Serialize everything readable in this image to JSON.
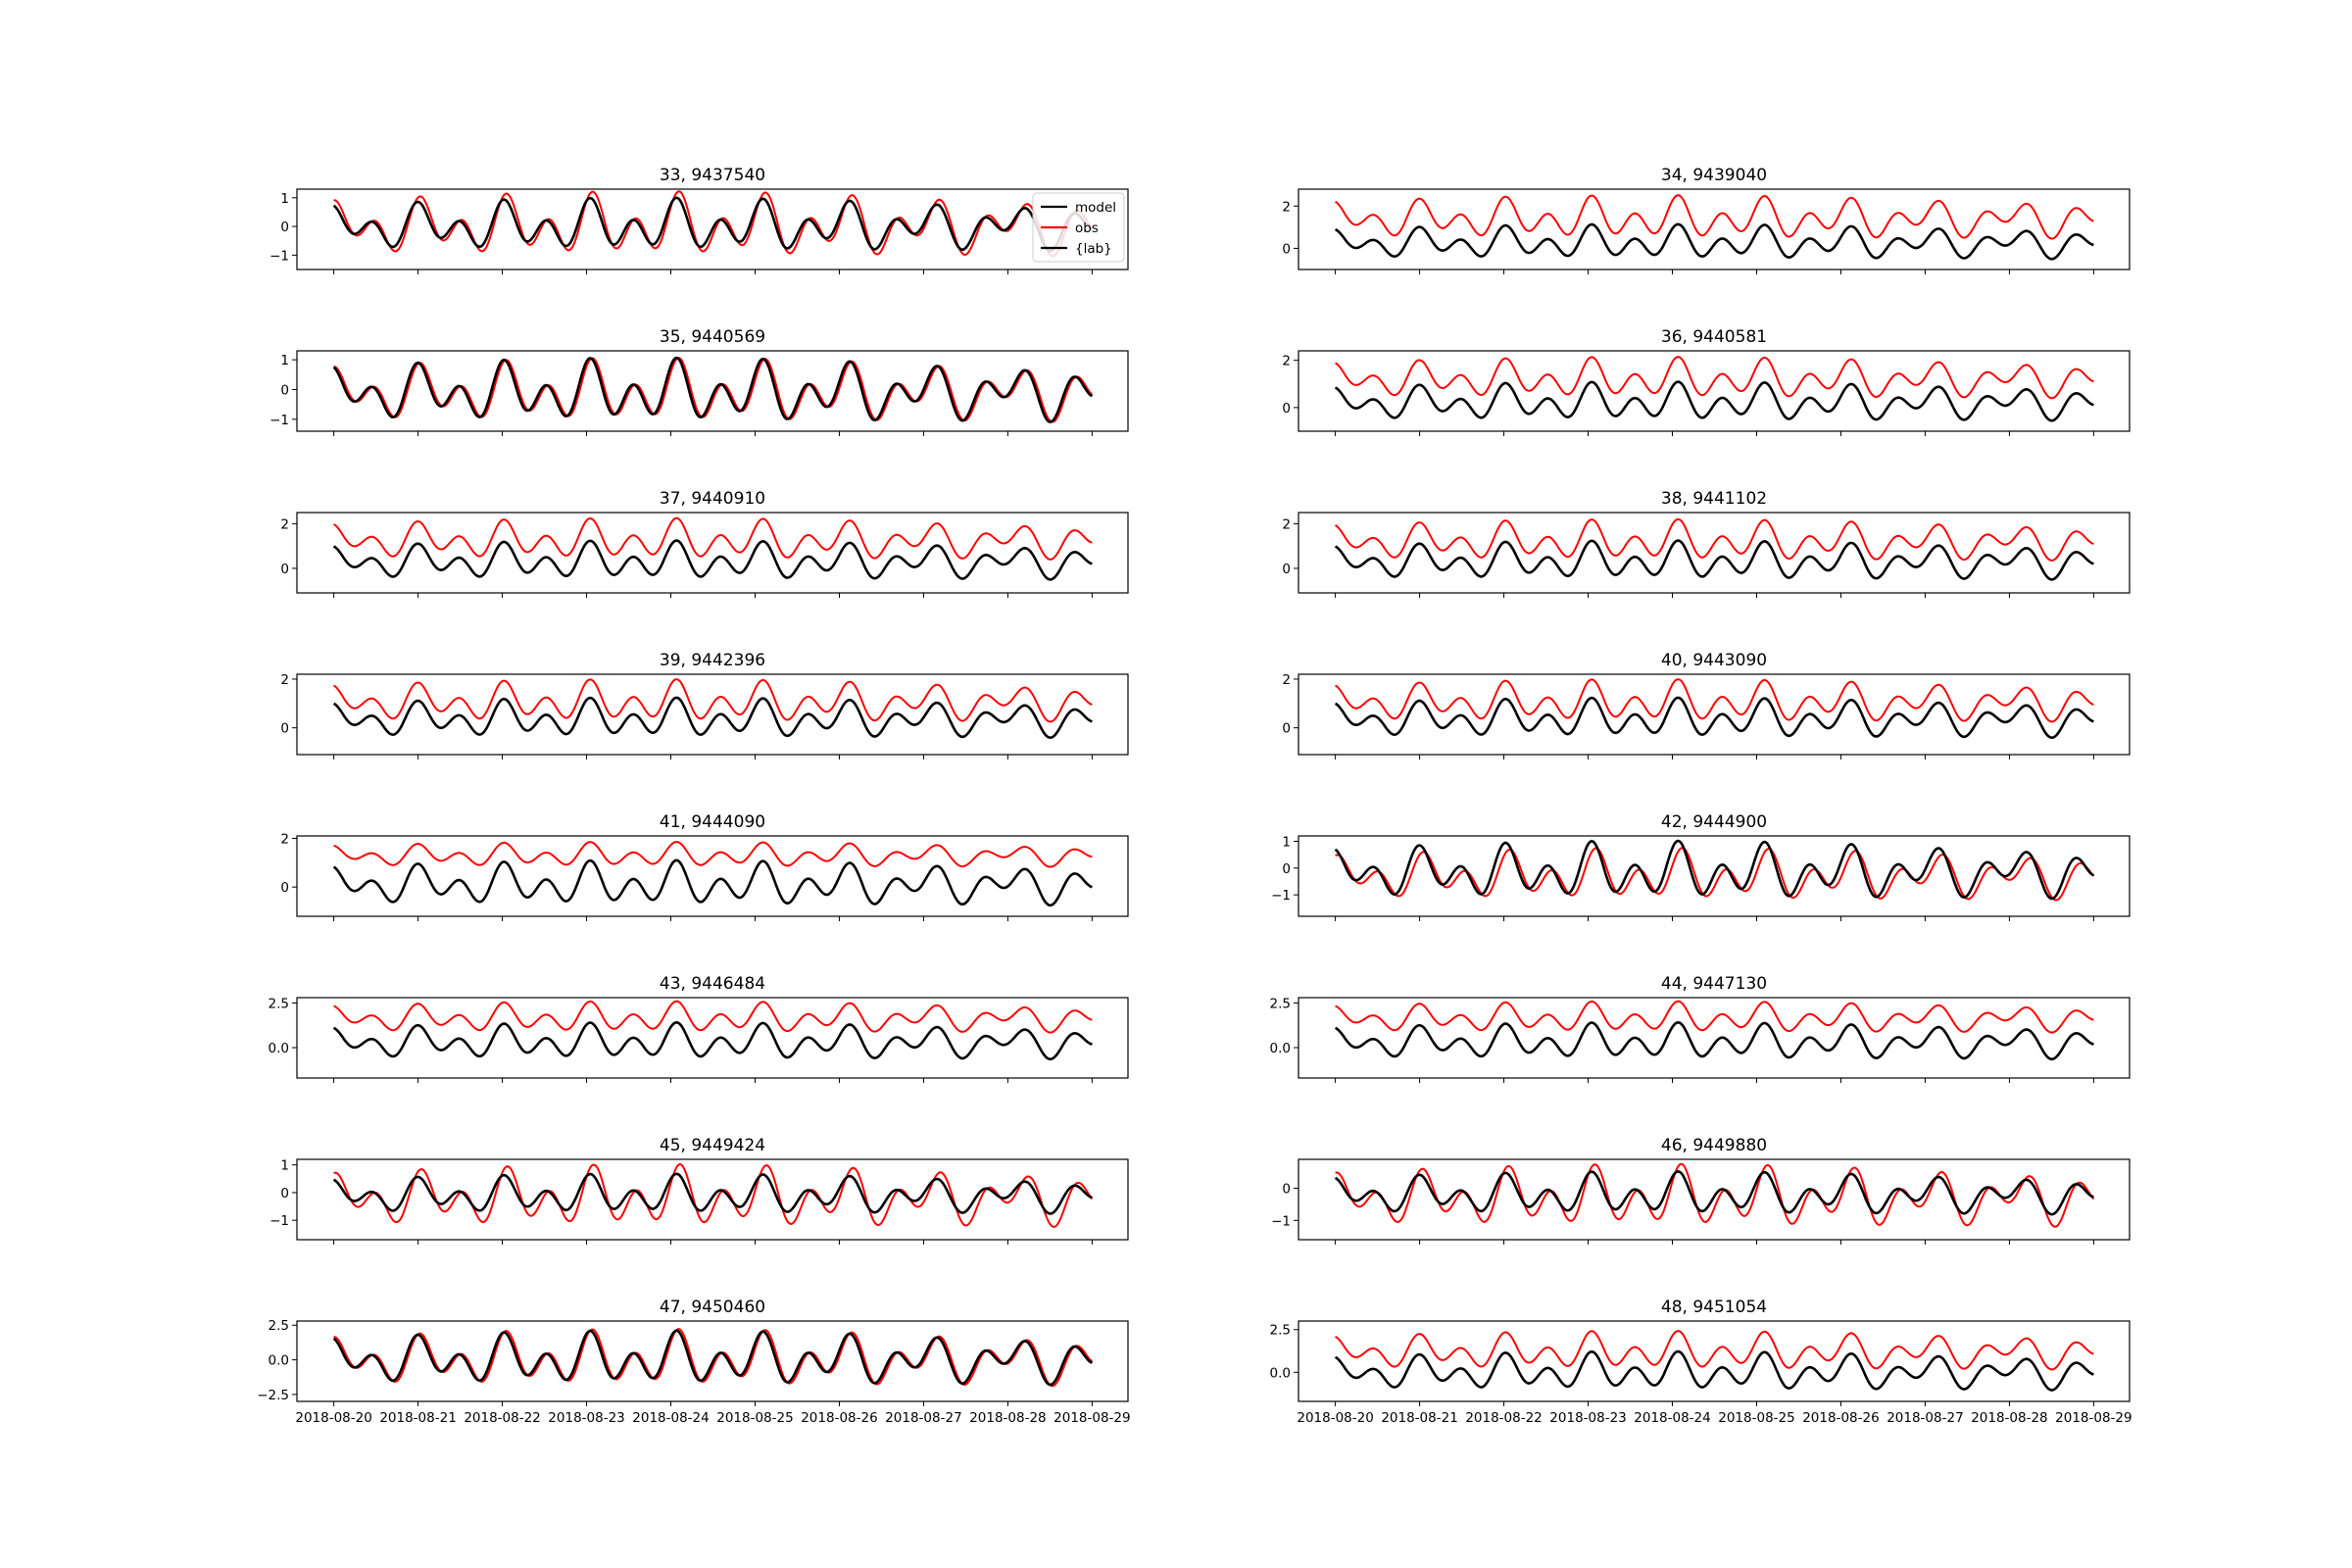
{
  "chart_data": {
    "type": "line",
    "layout": "8x2 grid of subplots",
    "x_tick_labels": [
      "2018-08-20",
      "2018-08-21",
      "2018-08-22",
      "2018-08-23",
      "2018-08-24",
      "2018-08-25",
      "2018-08-26",
      "2018-08-27",
      "2018-08-28",
      "2018-08-29"
    ],
    "legend": [
      {
        "label": "model",
        "color": "#000000"
      },
      {
        "label": "obs",
        "color": "#ff0000"
      },
      {
        "label": "{lab}",
        "color": "#000000"
      }
    ],
    "legend_placement": "upper-right of first subplot",
    "colors": {
      "model": "#000000",
      "obs": "#ff0000"
    },
    "subplots": [
      {
        "title": "33, 9437540",
        "yticks": [
          "1",
          "0",
          "−1"
        ],
        "ylim": [
          -1.5,
          1.3
        ],
        "model": {
          "mean": 0.0,
          "amp": 0.9
        },
        "obs": {
          "mean": 0.0,
          "amp": 1.1,
          "lag_hours": 0.7
        }
      },
      {
        "title": "34, 9439040",
        "yticks": [
          "2",
          "0"
        ],
        "ylim": [
          -1.0,
          2.8
        ],
        "model": {
          "mean": 0.25,
          "amp": 0.8
        },
        "obs": {
          "mean": 1.4,
          "amp": 1.0,
          "lag_hours": 0
        }
      },
      {
        "title": "35, 9440569",
        "yticks": [
          "1",
          "0",
          "−1"
        ],
        "ylim": [
          -1.4,
          1.3
        ],
        "model": {
          "mean": -0.1,
          "amp": 1.05
        },
        "obs": {
          "mean": -0.1,
          "amp": 1.05,
          "lag_hours": 0.6
        }
      },
      {
        "title": "36, 9440581",
        "yticks": [
          "2",
          "0"
        ],
        "ylim": [
          -1.0,
          2.4
        ],
        "model": {
          "mean": 0.2,
          "amp": 0.8
        },
        "obs": {
          "mean": 1.2,
          "amp": 0.85,
          "lag_hours": 0
        }
      },
      {
        "title": "37, 9440910",
        "yticks": [
          "2",
          "0"
        ],
        "ylim": [
          -1.1,
          2.5
        ],
        "model": {
          "mean": 0.3,
          "amp": 0.85
        },
        "obs": {
          "mean": 1.25,
          "amp": 0.9,
          "lag_hours": 0
        }
      },
      {
        "title": "38, 9441102",
        "yticks": [
          "2",
          "0"
        ],
        "ylim": [
          -1.1,
          2.5
        ],
        "model": {
          "mean": 0.3,
          "amp": 0.85
        },
        "obs": {
          "mean": 1.2,
          "amp": 0.9,
          "lag_hours": 0
        }
      },
      {
        "title": "39, 9442396",
        "yticks": [
          "2",
          "0"
        ],
        "ylim": [
          -1.1,
          2.2
        ],
        "model": {
          "mean": 0.35,
          "amp": 0.8
        },
        "obs": {
          "mean": 1.05,
          "amp": 0.85,
          "lag_hours": 0
        }
      },
      {
        "title": "40, 9443090",
        "yticks": [
          "2",
          "0"
        ],
        "ylim": [
          -1.1,
          2.2
        ],
        "model": {
          "mean": 0.35,
          "amp": 0.8
        },
        "obs": {
          "mean": 1.05,
          "amp": 0.85,
          "lag_hours": 0
        }
      },
      {
        "title": "41, 9444090",
        "yticks": [
          "2",
          "0"
        ],
        "ylim": [
          -1.2,
          2.1
        ],
        "model": {
          "mean": 0.1,
          "amp": 0.9
        },
        "obs": {
          "mean": 1.3,
          "amp": 0.5,
          "lag_hours": 0
        }
      },
      {
        "title": "42, 9444900",
        "yticks": [
          "1",
          "0",
          "−1"
        ],
        "ylim": [
          -1.8,
          1.2
        ],
        "model": {
          "mean": -0.15,
          "amp": 1.05
        },
        "obs": {
          "mean": -0.3,
          "amp": 0.95,
          "lag_hours": 1.2
        }
      },
      {
        "title": "43, 9446484",
        "yticks": [
          "2.5",
          "0.0"
        ],
        "ylim": [
          -1.7,
          2.8
        ],
        "model": {
          "mean": 0.3,
          "amp": 1.0
        },
        "obs": {
          "mean": 1.65,
          "amp": 0.85,
          "lag_hours": 0
        }
      },
      {
        "title": "44, 9447130",
        "yticks": [
          "2.5",
          "0.0"
        ],
        "ylim": [
          -1.7,
          2.8
        ],
        "model": {
          "mean": 0.3,
          "amp": 1.0
        },
        "obs": {
          "mean": 1.65,
          "amp": 0.85,
          "lag_hours": 0
        }
      },
      {
        "title": "45, 9449424",
        "yticks": [
          "1",
          "0",
          "−1"
        ],
        "ylim": [
          -1.7,
          1.2
        ],
        "model": {
          "mean": -0.1,
          "amp": 0.7
        },
        "obs": {
          "mean": -0.2,
          "amp": 1.1,
          "lag_hours": 1.0
        }
      },
      {
        "title": "46, 9449880",
        "yticks": [
          "0",
          "−1"
        ],
        "ylim": [
          -1.6,
          0.9
        ],
        "model": {
          "mean": -0.2,
          "amp": 0.65
        },
        "obs": {
          "mean": -0.3,
          "amp": 0.95,
          "lag_hours": 0.9
        }
      },
      {
        "title": "47, 9450460",
        "yticks": [
          "2.5",
          "0.0",
          "−2.5"
        ],
        "ylim": [
          -3.0,
          2.8
        ],
        "model": {
          "mean": 0.0,
          "amp": 1.9
        },
        "obs": {
          "mean": 0.0,
          "amp": 2.0,
          "lag_hours": 0.6
        }
      },
      {
        "title": "48, 9451054",
        "yticks": [
          "2.5",
          "0.0"
        ],
        "ylim": [
          -1.7,
          3.0
        ],
        "model": {
          "mean": 0.0,
          "amp": 1.1
        },
        "obs": {
          "mean": 1.2,
          "amp": 1.1,
          "lag_hours": 0
        }
      }
    ]
  }
}
